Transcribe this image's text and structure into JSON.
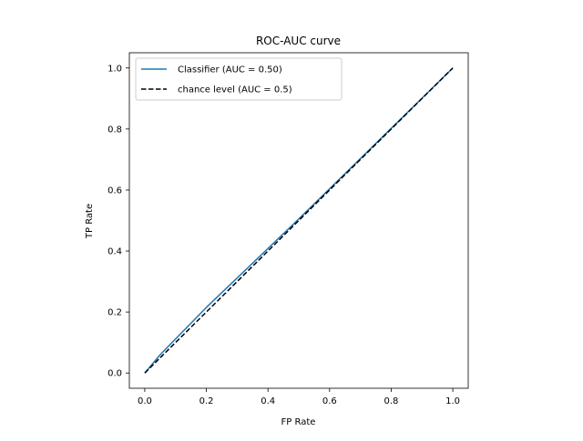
{
  "chart_data": {
    "type": "line",
    "title": "ROC-AUC curve",
    "xlabel": "FP Rate",
    "ylabel": "TP Rate",
    "xlim": [
      -0.05,
      1.05
    ],
    "ylim": [
      -0.05,
      1.05
    ],
    "x_ticks": [
      "0.0",
      "0.2",
      "0.4",
      "0.6",
      "0.8",
      "1.0"
    ],
    "y_ticks": [
      "0.0",
      "0.2",
      "0.4",
      "0.6",
      "0.8",
      "1.0"
    ],
    "grid": false,
    "legend_position": "top-left",
    "series": [
      {
        "name": "Classifier (AUC = 0.50)",
        "color": "#1f77b4",
        "style": "solid",
        "x": [
          0.0,
          0.05,
          0.2,
          0.5,
          0.8,
          1.0
        ],
        "y": [
          0.0,
          0.06,
          0.215,
          0.505,
          0.802,
          1.0
        ]
      },
      {
        "name": "chance level (AUC = 0.5)",
        "color": "#000000",
        "style": "dashed",
        "x": [
          0.0,
          1.0
        ],
        "y": [
          0.0,
          1.0
        ]
      }
    ]
  }
}
